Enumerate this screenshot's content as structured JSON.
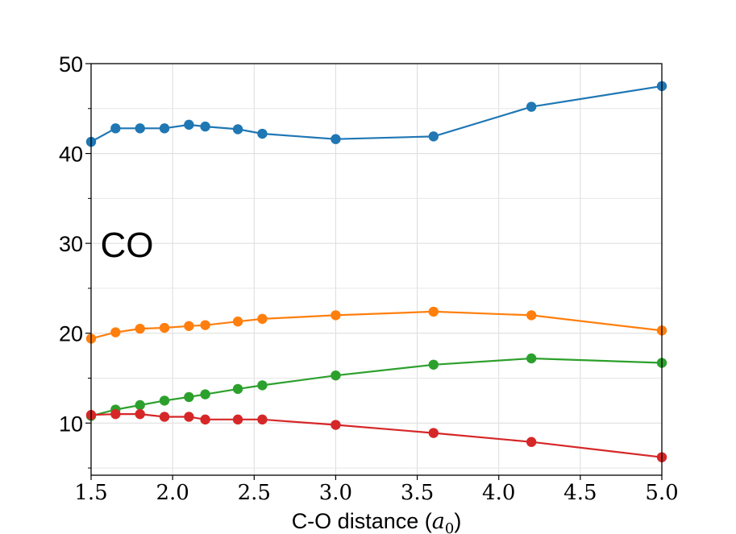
{
  "chart_data": {
    "type": "line",
    "title": "",
    "xlabel": "C-O distance (a₀)",
    "ylabel": "",
    "xlim": [
      1.5,
      5.0
    ],
    "ylim": [
      4.2,
      50
    ],
    "xticks": [
      1.5,
      2.0,
      2.5,
      3.0,
      3.5,
      4.0,
      4.5,
      5.0
    ],
    "xtick_labels": [
      "1.5",
      "2.0",
      "2.5",
      "3.0",
      "3.5",
      "4.0",
      "4.5",
      "5.0"
    ],
    "yticks": [
      10,
      20,
      30,
      40,
      50
    ],
    "ytick_labels": [
      "10",
      "20",
      "30",
      "40",
      "50"
    ],
    "yminor": [
      5,
      15,
      25,
      35,
      45
    ],
    "grid": true,
    "annotation": {
      "text": "CO",
      "x": 1.7,
      "y": 30
    },
    "x": [
      1.5,
      1.65,
      1.8,
      1.95,
      2.1,
      2.2,
      2.4,
      2.55,
      3.0,
      3.6,
      4.2,
      5.0
    ],
    "series": [
      {
        "name": "blue",
        "color": "#1f77b4",
        "values": [
          41.3,
          42.8,
          42.8,
          42.8,
          43.2,
          43.0,
          42.7,
          42.2,
          41.6,
          41.9,
          45.2,
          47.5
        ]
      },
      {
        "name": "orange",
        "color": "#ff7f0e",
        "values": [
          19.4,
          20.1,
          20.5,
          20.6,
          20.8,
          20.9,
          21.3,
          21.6,
          22.0,
          22.4,
          22.0,
          20.3
        ]
      },
      {
        "name": "green",
        "color": "#2ca02c",
        "values": [
          10.8,
          11.5,
          12.0,
          12.5,
          12.9,
          13.2,
          13.8,
          14.2,
          15.3,
          16.5,
          17.2,
          16.7
        ]
      },
      {
        "name": "red",
        "color": "#d62728",
        "values": [
          10.9,
          11.0,
          11.0,
          10.7,
          10.7,
          10.4,
          10.4,
          10.4,
          9.8,
          8.9,
          7.9,
          6.2
        ]
      }
    ]
  }
}
